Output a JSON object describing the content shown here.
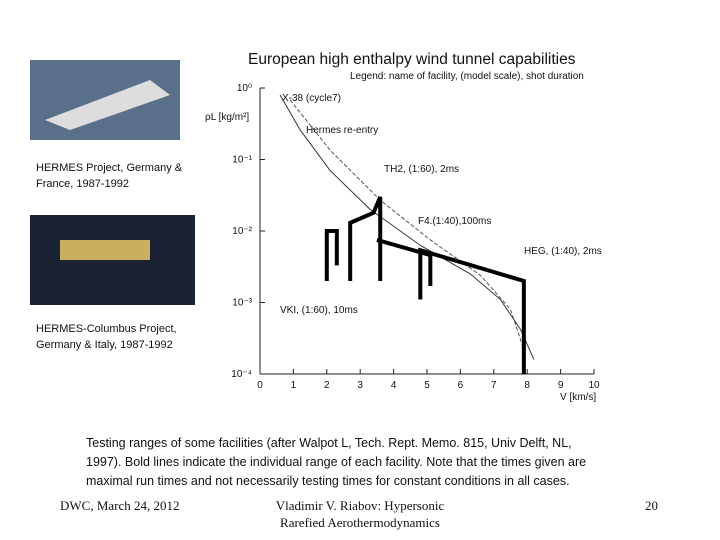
{
  "slide": {
    "captions": [
      [
        "HERMES Project, Germany &",
        "France, 1987-1992"
      ],
      [
        "HERMES-Columbus Project,",
        "Germany & Italy, 1987-1992"
      ]
    ],
    "description": [
      "Testing ranges of some facilities (after Walpot L, Tech. Rept. Memo. 815, Univ Delft, NL,",
      "1997). Bold lines indicate the individual range of each facility. Note that the times given are",
      "maximal run times and not necessarily testing times for constant conditions in all cases."
    ],
    "footer_left": "DWC, March 24, 2012",
    "footer_center": [
      "Vladimir V. Riabov: Hypersonic",
      "Rarefied Aerothermodynamics"
    ],
    "page_number": "20"
  },
  "chart_data": {
    "type": "line",
    "title": "European high enthalpy wind tunnel capabilities",
    "subtitle": "Legend: name of facility, (model scale), shot duration",
    "y_label": "ρL [kg/m²]",
    "x_label": "V [km/s]",
    "ylog": true,
    "xlim": [
      0,
      10
    ],
    "xticks": [
      0,
      1,
      2,
      3,
      4,
      5,
      6,
      7,
      8,
      9,
      10
    ],
    "ylim": [
      0.0001,
      1
    ],
    "yticks": [
      {
        "value": 1,
        "label": "10⁰"
      },
      {
        "value": 0.1,
        "label": "10⁻¹"
      },
      {
        "value": 0.01,
        "label": "10⁻²"
      },
      {
        "value": 0.001,
        "label": "10⁻³"
      },
      {
        "value": 0.0001,
        "label": "10⁻⁴"
      }
    ],
    "series": [
      {
        "name": "X-38 (cycle7)",
        "color": "#333333",
        "x": [
          0.6,
          1.2,
          2.1,
          3.3,
          4.8,
          6.3,
          7.2,
          7.8,
          8.2
        ],
        "values": [
          0.8,
          0.26,
          0.07,
          0.02,
          0.0063,
          0.0025,
          0.0011,
          0.00042,
          0.00016
        ]
      },
      {
        "name": "Hermes re-entry",
        "color": "#555555",
        "x": [
          0.9,
          2.1,
          3.6,
          5.1,
          6.6,
          7.5,
          7.9
        ],
        "values": [
          0.68,
          0.135,
          0.027,
          0.0075,
          0.0024,
          0.0008,
          0.00022
        ]
      },
      {
        "name": "VKI, (1:60), 10ms",
        "color": "#000000",
        "x": [
          2.0,
          2.0,
          2.3,
          2.3
        ],
        "values": [
          0.002,
          0.01,
          0.01,
          0.0033
        ]
      },
      {
        "name": "TH2, (1:60), 2ms",
        "color": "#000000",
        "x": [
          2.7,
          2.7,
          3.4,
          3.6,
          3.6
        ],
        "values": [
          0.002,
          0.013,
          0.018,
          0.03,
          0.002
        ]
      },
      {
        "name": "F4.(1:40),100ms",
        "color": "#000000",
        "x": [
          3.5,
          5.1,
          5.1
        ],
        "values": [
          0.0075,
          0.0046,
          0.0017
        ]
      },
      {
        "name": "HEG, (1:40), 2ms",
        "color": "#000000",
        "x": [
          4.8,
          4.8,
          7.9,
          7.9
        ],
        "values": [
          0.0011,
          0.0054,
          0.002,
          0.0001
        ]
      }
    ]
  }
}
